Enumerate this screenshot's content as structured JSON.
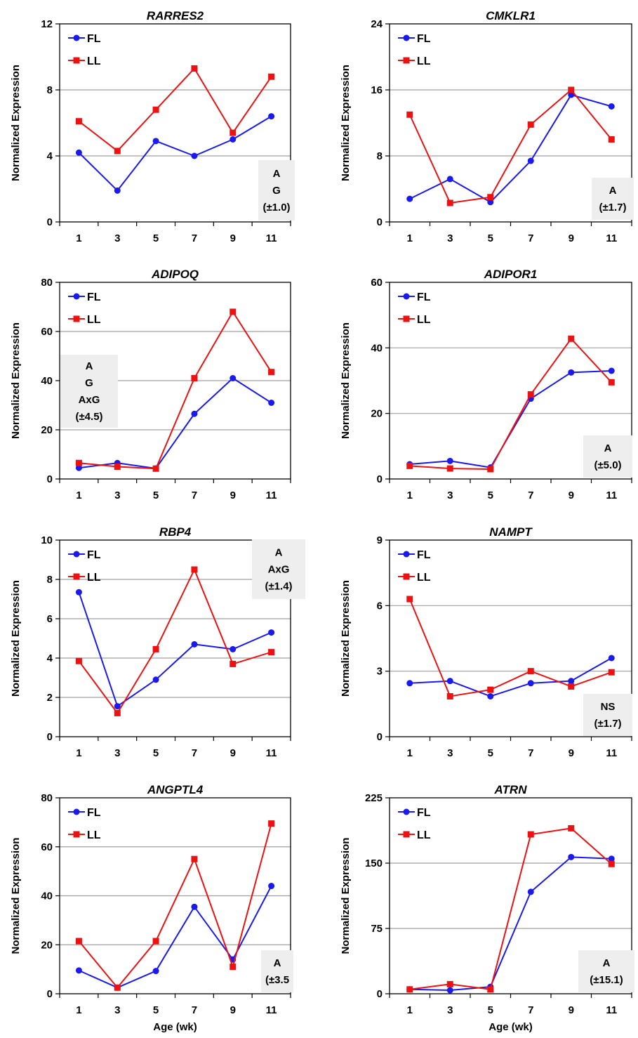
{
  "colors": {
    "FL": "#1a1aee",
    "LL": "#ee1111",
    "grid": "#a0a0a0",
    "statbox": "#eeeeee"
  },
  "chart_data": [
    {
      "type": "line",
      "title": "RARRES2",
      "ylabel": "Normalized Expression",
      "xlabel": "",
      "x": [
        1,
        3,
        5,
        7,
        9,
        11
      ],
      "yticks": [
        "0",
        "4",
        "8",
        "12"
      ],
      "ylim": [
        0,
        12
      ],
      "legend": "top-left",
      "grid": true,
      "series": [
        {
          "name": "FL",
          "marker": "circle",
          "values": [
            4.2,
            1.9,
            4.9,
            4.0,
            5.0,
            6.4
          ]
        },
        {
          "name": "LL",
          "marker": "square",
          "values": [
            6.1,
            4.3,
            6.8,
            9.3,
            5.4,
            8.8
          ]
        }
      ],
      "stats": [
        "A",
        "G",
        "(±1.0)"
      ]
    },
    {
      "type": "line",
      "title": "CMKLR1",
      "ylabel": "Normalized Expression",
      "xlabel": "",
      "x": [
        1,
        3,
        5,
        7,
        9,
        11
      ],
      "yticks": [
        "0",
        "8",
        "16",
        "24"
      ],
      "ylim": [
        0,
        24
      ],
      "legend": "top-left",
      "grid": true,
      "series": [
        {
          "name": "FL",
          "marker": "circle",
          "values": [
            2.8,
            5.2,
            2.4,
            7.4,
            15.4,
            14.0
          ]
        },
        {
          "name": "LL",
          "marker": "square",
          "values": [
            13.0,
            2.3,
            3.0,
            11.8,
            16.0,
            10.0
          ]
        }
      ],
      "stats": [
        "A",
        "(±1.7)"
      ]
    },
    {
      "type": "line",
      "title": "ADIPOQ",
      "ylabel": "Normalized Expression",
      "xlabel": "",
      "x": [
        1,
        3,
        5,
        7,
        9,
        11
      ],
      "yticks": [
        "0",
        "20",
        "40",
        "60",
        "80"
      ],
      "ylim": [
        0,
        80
      ],
      "legend": "top-left",
      "grid": true,
      "series": [
        {
          "name": "FL",
          "marker": "circle",
          "values": [
            4.5,
            6.5,
            4.3,
            26.5,
            41.0,
            31.0
          ]
        },
        {
          "name": "LL",
          "marker": "square",
          "values": [
            6.5,
            5.0,
            4.2,
            41.0,
            68.0,
            43.5
          ]
        }
      ],
      "stats": [
        "A",
        "G",
        "AxG",
        "(±4.5)"
      ]
    },
    {
      "type": "line",
      "title": "ADIPOR1",
      "ylabel": "Normalized Expression",
      "xlabel": "",
      "x": [
        1,
        3,
        5,
        7,
        9,
        11
      ],
      "yticks": [
        "0",
        "20",
        "40",
        "60"
      ],
      "ylim": [
        0,
        60
      ],
      "legend": "top-left",
      "grid": true,
      "series": [
        {
          "name": "FL",
          "marker": "circle",
          "values": [
            4.5,
            5.5,
            3.5,
            24.5,
            32.5,
            33.0
          ]
        },
        {
          "name": "LL",
          "marker": "square",
          "values": [
            4.0,
            3.2,
            3.0,
            25.8,
            42.8,
            29.5
          ]
        }
      ],
      "stats": [
        "A",
        "(±5.0)"
      ]
    },
    {
      "type": "line",
      "title": "RBP4",
      "ylabel": "Normalized Expression",
      "xlabel": "",
      "x": [
        1,
        3,
        5,
        7,
        9,
        11
      ],
      "yticks": [
        "0",
        "2",
        "4",
        "6",
        "8",
        "10"
      ],
      "ylim": [
        0,
        10
      ],
      "legend": "top-left",
      "grid": true,
      "series": [
        {
          "name": "FL",
          "marker": "circle",
          "values": [
            7.35,
            1.55,
            2.9,
            4.7,
            4.45,
            5.3
          ]
        },
        {
          "name": "LL",
          "marker": "square",
          "values": [
            3.85,
            1.2,
            4.45,
            8.5,
            3.7,
            4.3
          ]
        }
      ],
      "stats": [
        "A",
        "AxG",
        "(±1.4)"
      ]
    },
    {
      "type": "line",
      "title": "NAMPT",
      "ylabel": "Normalized Expression",
      "xlabel": "",
      "x": [
        1,
        3,
        5,
        7,
        9,
        11
      ],
      "yticks": [
        "0",
        "3",
        "6",
        "9"
      ],
      "ylim": [
        0,
        9
      ],
      "legend": "top-left",
      "grid": true,
      "series": [
        {
          "name": "FL",
          "marker": "circle",
          "values": [
            2.45,
            2.55,
            1.85,
            2.45,
            2.55,
            3.6
          ]
        },
        {
          "name": "LL",
          "marker": "square",
          "values": [
            6.3,
            1.85,
            2.15,
            3.0,
            2.3,
            2.95
          ]
        }
      ],
      "stats": [
        "NS",
        "(±1.7)"
      ]
    },
    {
      "type": "line",
      "title": "ANGPTL4",
      "ylabel": "Normalized Expression",
      "xlabel": "Age (wk)",
      "x": [
        1,
        3,
        5,
        7,
        9,
        11
      ],
      "yticks": [
        "0",
        "20",
        "40",
        "60",
        "80"
      ],
      "ylim": [
        0,
        80
      ],
      "legend": "top-left",
      "grid": true,
      "series": [
        {
          "name": "FL",
          "marker": "circle",
          "values": [
            9.5,
            2.5,
            9.3,
            35.5,
            14.0,
            44.0
          ]
        },
        {
          "name": "LL",
          "marker": "square",
          "values": [
            21.5,
            2.5,
            21.5,
            55.0,
            11.0,
            69.5
          ]
        }
      ],
      "stats": [
        "A",
        "(±3.5"
      ]
    },
    {
      "type": "line",
      "title": "ATRN",
      "ylabel": "Normalized Expression",
      "xlabel": "Age (wk)",
      "x": [
        1,
        3,
        5,
        7,
        9,
        11
      ],
      "yticks": [
        "0",
        "75",
        "150",
        "225"
      ],
      "ylim": [
        0,
        225
      ],
      "legend": "top-left",
      "grid": true,
      "series": [
        {
          "name": "FL",
          "marker": "circle",
          "values": [
            5,
            4,
            8,
            117,
            157,
            155
          ]
        },
        {
          "name": "LL",
          "marker": "square",
          "values": [
            5,
            11,
            5,
            183,
            190,
            149
          ]
        }
      ],
      "stats": [
        "A",
        "(±15.1)"
      ]
    }
  ]
}
